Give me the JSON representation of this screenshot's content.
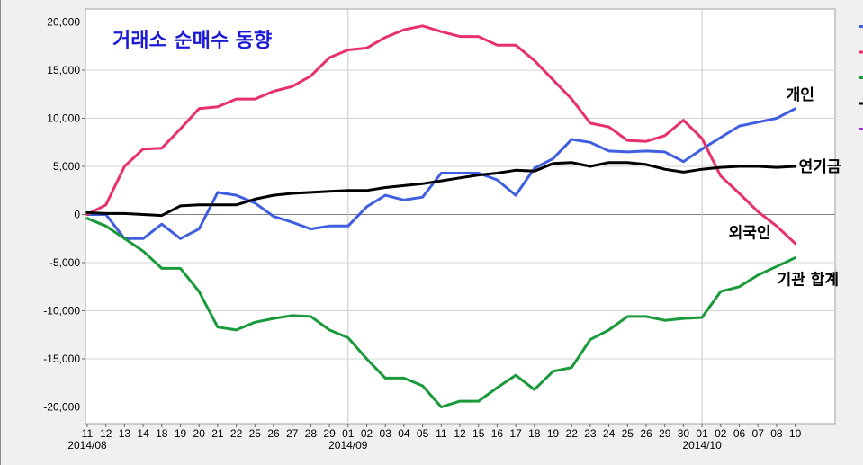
{
  "chart_data": {
    "type": "line",
    "title": "거래소 순매수 동향",
    "xlabel": "",
    "ylabel": "",
    "ylim": [
      -22000,
      21000
    ],
    "yticks": [
      20000,
      15000,
      10000,
      5000,
      0,
      -5000,
      -10000,
      -15000,
      -20000
    ],
    "ytick_labels": [
      "20,000",
      "15,000",
      "10,000",
      "5,000",
      "0",
      "-5,000",
      "-10,000",
      "-15,000",
      "-20,000"
    ],
    "x": [
      "11",
      "12",
      "13",
      "14",
      "18",
      "19",
      "20",
      "21",
      "22",
      "25",
      "26",
      "27",
      "28",
      "29",
      "01",
      "02",
      "03",
      "04",
      "05",
      "11",
      "12",
      "15",
      "16",
      "17",
      "18",
      "19",
      "22",
      "23",
      "24",
      "25",
      "26",
      "29",
      "30",
      "01",
      "02",
      "06",
      "07",
      "08",
      "10"
    ],
    "month_labels": [
      {
        "index": 0,
        "text": "2014/08"
      },
      {
        "index": 14,
        "text": "2014/09"
      },
      {
        "index": 33,
        "text": "2014/10"
      }
    ],
    "month_gridlines": [
      14,
      33
    ],
    "grid": true,
    "legend": "right, clipped",
    "series": [
      {
        "name": "개인",
        "color": "#3f5fe0",
        "values": [
          0,
          0,
          -2500,
          -2500,
          -1000,
          -2500,
          -1500,
          2300,
          2000,
          1200,
          -200,
          -800,
          -1500,
          -1200,
          -1200,
          800,
          2000,
          1500,
          1800,
          4300,
          4300,
          4300,
          3600,
          2000,
          4800,
          5800,
          7800,
          7500,
          6600,
          6500,
          6600,
          6500,
          5500,
          6800,
          8000,
          9200,
          9600,
          10000,
          11000
        ]
      },
      {
        "name": "외국인",
        "color": "#e8306c",
        "values": [
          0,
          1000,
          5000,
          6800,
          6900,
          8900,
          11000,
          11200,
          12000,
          12000,
          12800,
          13300,
          14400,
          16300,
          17100,
          17300,
          18400,
          19200,
          19600,
          19000,
          18500,
          18500,
          17600,
          17600,
          16000,
          14000,
          12000,
          9500,
          9100,
          7700,
          7600,
          8200,
          9800,
          7900,
          4000,
          2200,
          300,
          -1200,
          -3000
        ]
      },
      {
        "name": "기관 합계",
        "color": "#1a9a3a",
        "values": [
          -400,
          -1200,
          -2500,
          -3800,
          -5600,
          -5600,
          -8000,
          -11700,
          -12000,
          -11200,
          -10800,
          -10500,
          -10600,
          -12000,
          -12800,
          -15000,
          -17000,
          -17000,
          -17800,
          -20000,
          -19400,
          -19400,
          -18000,
          -16700,
          -18200,
          -16300,
          -15900,
          -13000,
          -12000,
          -10600,
          -10600,
          -11000,
          -10800,
          -10700,
          -8000,
          -7500,
          -6300,
          -5400,
          -4500
        ]
      },
      {
        "name": "연기금",
        "color": "#000000",
        "values": [
          200,
          100,
          100,
          0,
          -100,
          900,
          1000,
          1000,
          1000,
          1600,
          2000,
          2200,
          2300,
          2400,
          2500,
          2500,
          2800,
          3000,
          3200,
          3500,
          3800,
          4100,
          4300,
          4600,
          4500,
          5300,
          5400,
          5000,
          5400,
          5400,
          5200,
          4700,
          4400,
          4700,
          4900,
          5000,
          5000,
          4900,
          5000
        ]
      }
    ],
    "annotations": [
      {
        "text": "개인",
        "series": 0
      },
      {
        "text": "연기금",
        "series": 3
      },
      {
        "text": "외국인",
        "series": 1
      },
      {
        "text": "기관 합계",
        "series": 2
      }
    ],
    "legend_colors": [
      "#3f5fe0",
      "#e8306c",
      "#1a9a3a",
      "#000000",
      "#9b30d0"
    ]
  }
}
